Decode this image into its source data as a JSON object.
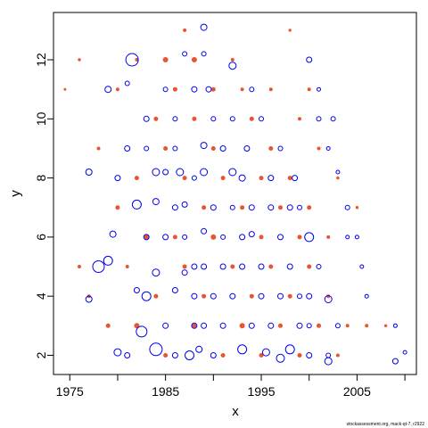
{
  "chart_data": {
    "type": "scatter",
    "xlabel": "x",
    "ylabel": "y",
    "xlim": [
      1973.3,
      2011.2
    ],
    "ylim": [
      1.35,
      13.6
    ],
    "xticks": [
      1975,
      1985,
      1995,
      2005
    ],
    "xtick_labels": [
      "1975",
      "1985",
      "1995",
      "2005"
    ],
    "xminor": [
      1980,
      1990,
      2000,
      2010
    ],
    "yticks": [
      2,
      4,
      6,
      8,
      10,
      12
    ],
    "ytick_labels": [
      "2",
      "4",
      "6",
      "8",
      "10",
      "12"
    ],
    "grid": false,
    "colors": {
      "negative": "#e8552e",
      "positive": "#0000ee"
    },
    "series": [
      {
        "values": [
          {
            "x": 1974.5,
            "y": 11.0,
            "r": 1
          },
          {
            "x": 1976.0,
            "y": 12.0,
            "r": 1.2
          },
          {
            "x": 1976.0,
            "y": 5.0,
            "r": 1.5
          },
          {
            "x": 1977.0,
            "y": 4.0,
            "r": 1.5
          },
          {
            "x": 1978.0,
            "y": 9.0,
            "r": 1.5
          },
          {
            "x": 1979.0,
            "y": 3.0,
            "r": 2
          },
          {
            "x": 1980.0,
            "y": 11.0,
            "r": 1.5
          },
          {
            "x": 1980.0,
            "y": 7.0,
            "r": 2
          },
          {
            "x": 1981.0,
            "y": 5.0,
            "r": 1.5
          },
          {
            "x": 1982.0,
            "y": 12.0,
            "r": 1.5
          },
          {
            "x": 1982.0,
            "y": 8.0,
            "r": 2
          },
          {
            "x": 1982.0,
            "y": 3.0,
            "r": 2.5
          },
          {
            "x": 1983.0,
            "y": 6.0,
            "r": 2
          },
          {
            "x": 1984.0,
            "y": 10.0,
            "r": 2
          },
          {
            "x": 1984.0,
            "y": 4.0,
            "r": 2
          },
          {
            "x": 1985.0,
            "y": 12.0,
            "r": 2.5
          },
          {
            "x": 1985.0,
            "y": 9.0,
            "r": 2
          },
          {
            "x": 1985.0,
            "y": 2.0,
            "r": 2
          },
          {
            "x": 1986.0,
            "y": 11.0,
            "r": 2
          },
          {
            "x": 1986.0,
            "y": 6.0,
            "r": 2
          },
          {
            "x": 1987.0,
            "y": 13.0,
            "r": 1.5
          },
          {
            "x": 1987.0,
            "y": 8.0,
            "r": 2
          },
          {
            "x": 1987.0,
            "y": 5.0,
            "r": 2
          },
          {
            "x": 1988.0,
            "y": 12.0,
            "r": 2.5
          },
          {
            "x": 1988.0,
            "y": 10.0,
            "r": 2
          },
          {
            "x": 1988.0,
            "y": 3.0,
            "r": 2
          },
          {
            "x": 1989.0,
            "y": 7.0,
            "r": 2
          },
          {
            "x": 1989.0,
            "y": 4.0,
            "r": 2
          },
          {
            "x": 1990.0,
            "y": 11.0,
            "r": 2
          },
          {
            "x": 1990.0,
            "y": 9.0,
            "r": 2
          },
          {
            "x": 1990.0,
            "y": 6.0,
            "r": 2.5
          },
          {
            "x": 1991.0,
            "y": 2.0,
            "r": 2
          },
          {
            "x": 1991.0,
            "y": 8.0,
            "r": 2
          },
          {
            "x": 1992.0,
            "y": 12.0,
            "r": 1.5
          },
          {
            "x": 1992.0,
            "y": 5.0,
            "r": 2
          },
          {
            "x": 1993.0,
            "y": 11.0,
            "r": 1.5
          },
          {
            "x": 1993.0,
            "y": 7.0,
            "r": 2
          },
          {
            "x": 1993.0,
            "y": 3.0,
            "r": 2.5
          },
          {
            "x": 1994.0,
            "y": 10.0,
            "r": 2
          },
          {
            "x": 1994.0,
            "y": 4.0,
            "r": 2
          },
          {
            "x": 1995.0,
            "y": 8.0,
            "r": 2
          },
          {
            "x": 1995.0,
            "y": 6.0,
            "r": 2
          },
          {
            "x": 1995.0,
            "y": 2.0,
            "r": 2
          },
          {
            "x": 1996.0,
            "y": 11.0,
            "r": 1.5
          },
          {
            "x": 1996.0,
            "y": 9.0,
            "r": 2
          },
          {
            "x": 1996.0,
            "y": 5.0,
            "r": 2
          },
          {
            "x": 1997.0,
            "y": 7.0,
            "r": 2
          },
          {
            "x": 1997.0,
            "y": 3.0,
            "r": 2
          },
          {
            "x": 1998.0,
            "y": 13.0,
            "r": 1.2
          },
          {
            "x": 1998.0,
            "y": 8.0,
            "r": 2
          },
          {
            "x": 1998.0,
            "y": 4.0,
            "r": 2
          },
          {
            "x": 1999.0,
            "y": 10.0,
            "r": 1.5
          },
          {
            "x": 1999.0,
            "y": 6.0,
            "r": 2
          },
          {
            "x": 1999.0,
            "y": 2.0,
            "r": 2
          },
          {
            "x": 2000.0,
            "y": 11.0,
            "r": 1.5
          },
          {
            "x": 2000.0,
            "y": 7.0,
            "r": 2
          },
          {
            "x": 2000.0,
            "y": 5.0,
            "r": 2
          },
          {
            "x": 2001.0,
            "y": 9.0,
            "r": 1.5
          },
          {
            "x": 2001.0,
            "y": 3.0,
            "r": 2
          },
          {
            "x": 2002.0,
            "y": 6.0,
            "r": 1.5
          },
          {
            "x": 2002.0,
            "y": 4.0,
            "r": 1.5
          },
          {
            "x": 2003.0,
            "y": 8.0,
            "r": 1.2
          },
          {
            "x": 2003.0,
            "y": 2.0,
            "r": 1.5
          },
          {
            "x": 2004.0,
            "y": 3.0,
            "r": 1.5
          },
          {
            "x": 2005.0,
            "y": 7.0,
            "r": 1.2
          },
          {
            "x": 2006.0,
            "y": 3.0,
            "r": 1.5
          },
          {
            "x": 2008.0,
            "y": 3.0,
            "r": 1.2
          }
        ]
      },
      {
        "values": [
          {
            "x": 1977.0,
            "y": 8.2,
            "r": 3.5
          },
          {
            "x": 1977.0,
            "y": 3.9,
            "r": 3.5
          },
          {
            "x": 1978.0,
            "y": 5.0,
            "r": 6.5
          },
          {
            "x": 1979.0,
            "y": 5.2,
            "r": 5
          },
          {
            "x": 1979.0,
            "y": 11.0,
            "r": 3.5
          },
          {
            "x": 1979.5,
            "y": 6.1,
            "r": 3.5
          },
          {
            "x": 1980.0,
            "y": 2.1,
            "r": 4
          },
          {
            "x": 1980.0,
            "y": 8.0,
            "r": 3
          },
          {
            "x": 1981.0,
            "y": 11.2,
            "r": 2.5
          },
          {
            "x": 1981.0,
            "y": 9.0,
            "r": 3
          },
          {
            "x": 1981.0,
            "y": 2.0,
            "r": 3
          },
          {
            "x": 1981.5,
            "y": 12.0,
            "r": 7
          },
          {
            "x": 1982.0,
            "y": 7.1,
            "r": 5
          },
          {
            "x": 1982.0,
            "y": 4.2,
            "r": 3
          },
          {
            "x": 1982.5,
            "y": 2.8,
            "r": 6
          },
          {
            "x": 1983.0,
            "y": 4.0,
            "r": 5
          },
          {
            "x": 1983.0,
            "y": 6.0,
            "r": 3
          },
          {
            "x": 1983.0,
            "y": 10.0,
            "r": 3
          },
          {
            "x": 1983.0,
            "y": 9.0,
            "r": 2.5
          },
          {
            "x": 1984.0,
            "y": 2.2,
            "r": 7
          },
          {
            "x": 1984.0,
            "y": 8.2,
            "r": 4
          },
          {
            "x": 1984.0,
            "y": 4.8,
            "r": 4
          },
          {
            "x": 1984.0,
            "y": 7.2,
            "r": 3.5
          },
          {
            "x": 1985.0,
            "y": 8.2,
            "r": 3
          },
          {
            "x": 1985.0,
            "y": 6.0,
            "r": 3
          },
          {
            "x": 1985.0,
            "y": 3.0,
            "r": 3
          },
          {
            "x": 1985.0,
            "y": 11.0,
            "r": 2.5
          },
          {
            "x": 1986.0,
            "y": 7.0,
            "r": 3
          },
          {
            "x": 1986.0,
            "y": 4.2,
            "r": 3
          },
          {
            "x": 1986.0,
            "y": 10.0,
            "r": 2.5
          },
          {
            "x": 1986.0,
            "y": 2.0,
            "r": 3
          },
          {
            "x": 1986.0,
            "y": 9.0,
            "r": 2.5
          },
          {
            "x": 1986.5,
            "y": 8.2,
            "r": 4
          },
          {
            "x": 1987.0,
            "y": 7.1,
            "r": 3
          },
          {
            "x": 1987.0,
            "y": 4.8,
            "r": 3
          },
          {
            "x": 1987.0,
            "y": 12.2,
            "r": 2.5
          },
          {
            "x": 1987.0,
            "y": 6.0,
            "r": 2.5
          },
          {
            "x": 1987.5,
            "y": 2.0,
            "r": 5
          },
          {
            "x": 1988.0,
            "y": 11.0,
            "r": 3
          },
          {
            "x": 1988.0,
            "y": 8.0,
            "r": 2.5
          },
          {
            "x": 1988.0,
            "y": 4.0,
            "r": 3
          },
          {
            "x": 1988.0,
            "y": 5.0,
            "r": 3
          },
          {
            "x": 1988.0,
            "y": 3.0,
            "r": 3
          },
          {
            "x": 1988.5,
            "y": 2.2,
            "r": 3.5
          },
          {
            "x": 1989.0,
            "y": 13.1,
            "r": 3.5
          },
          {
            "x": 1989.0,
            "y": 9.1,
            "r": 3.5
          },
          {
            "x": 1989.0,
            "y": 8.2,
            "r": 4
          },
          {
            "x": 1989.0,
            "y": 6.2,
            "r": 3
          },
          {
            "x": 1989.0,
            "y": 12.2,
            "r": 2.5
          },
          {
            "x": 1989.0,
            "y": 5.0,
            "r": 3
          },
          {
            "x": 1989.0,
            "y": 3.0,
            "r": 3
          },
          {
            "x": 1989.5,
            "y": 11.0,
            "r": 3
          },
          {
            "x": 1990.0,
            "y": 4.0,
            "r": 3
          },
          {
            "x": 1990.0,
            "y": 7.0,
            "r": 3
          },
          {
            "x": 1990.0,
            "y": 10.0,
            "r": 2.5
          },
          {
            "x": 1990.0,
            "y": 2.0,
            "r": 3
          },
          {
            "x": 1991.0,
            "y": 5.0,
            "r": 3
          },
          {
            "x": 1991.0,
            "y": 9.0,
            "r": 3
          },
          {
            "x": 1991.0,
            "y": 3.0,
            "r": 3
          },
          {
            "x": 1991.0,
            "y": 6.0,
            "r": 2.5
          },
          {
            "x": 1992.0,
            "y": 8.2,
            "r": 4
          },
          {
            "x": 1992.0,
            "y": 11.8,
            "r": 4
          },
          {
            "x": 1992.0,
            "y": 4.0,
            "r": 3
          },
          {
            "x": 1992.0,
            "y": 10.0,
            "r": 2.5
          },
          {
            "x": 1992.0,
            "y": 7.0,
            "r": 2.5
          },
          {
            "x": 1993.0,
            "y": 2.2,
            "r": 5
          },
          {
            "x": 1993.0,
            "y": 8.0,
            "r": 3.5
          },
          {
            "x": 1993.0,
            "y": 5.0,
            "r": 3
          },
          {
            "x": 1993.0,
            "y": 6.0,
            "r": 3
          },
          {
            "x": 1993.5,
            "y": 9.0,
            "r": 3
          },
          {
            "x": 1994.0,
            "y": 3.0,
            "r": 3
          },
          {
            "x": 1994.0,
            "y": 7.0,
            "r": 3
          },
          {
            "x": 1994.0,
            "y": 11.0,
            "r": 2.5
          },
          {
            "x": 1994.0,
            "y": 6.1,
            "r": 3
          },
          {
            "x": 1995.0,
            "y": 4.0,
            "r": 3
          },
          {
            "x": 1995.0,
            "y": 5.0,
            "r": 3
          },
          {
            "x": 1995.0,
            "y": 10.0,
            "r": 2.5
          },
          {
            "x": 1995.5,
            "y": 2.1,
            "r": 4
          },
          {
            "x": 1996.0,
            "y": 7.0,
            "r": 3
          },
          {
            "x": 1996.0,
            "y": 3.0,
            "r": 3
          },
          {
            "x": 1996.0,
            "y": 8.0,
            "r": 3
          },
          {
            "x": 1997.0,
            "y": 1.9,
            "r": 4.5
          },
          {
            "x": 1997.0,
            "y": 6.0,
            "r": 3
          },
          {
            "x": 1997.0,
            "y": 4.0,
            "r": 3
          },
          {
            "x": 1997.0,
            "y": 9.0,
            "r": 2.5
          },
          {
            "x": 1998.0,
            "y": 2.2,
            "r": 5
          },
          {
            "x": 1998.0,
            "y": 7.0,
            "r": 3
          },
          {
            "x": 1998.0,
            "y": 5.0,
            "r": 3
          },
          {
            "x": 1998.5,
            "y": 8.0,
            "r": 3
          },
          {
            "x": 1999.0,
            "y": 3.0,
            "r": 3
          },
          {
            "x": 1999.0,
            "y": 4.0,
            "r": 2.5
          },
          {
            "x": 1999.0,
            "y": 7.0,
            "r": 2.5
          },
          {
            "x": 2000.0,
            "y": 6.0,
            "r": 5
          },
          {
            "x": 2000.0,
            "y": 12.0,
            "r": 3
          },
          {
            "x": 2000.0,
            "y": 4.0,
            "r": 3
          },
          {
            "x": 2000.0,
            "y": 2.0,
            "r": 3
          },
          {
            "x": 2000.0,
            "y": 3.0,
            "r": 2.5
          },
          {
            "x": 2001.0,
            "y": 10.0,
            "r": 2.5
          },
          {
            "x": 2001.0,
            "y": 5.0,
            "r": 2.5
          },
          {
            "x": 2001.0,
            "y": 11.0,
            "r": 2
          },
          {
            "x": 2002.0,
            "y": 3.9,
            "r": 4
          },
          {
            "x": 2002.0,
            "y": 1.8,
            "r": 4
          },
          {
            "x": 2002.0,
            "y": 9.0,
            "r": 2
          },
          {
            "x": 2002.0,
            "y": 2.0,
            "r": 2.5
          },
          {
            "x": 2002.5,
            "y": 10.0,
            "r": 2.5
          },
          {
            "x": 2003.0,
            "y": 3.0,
            "r": 2.5
          },
          {
            "x": 2003.0,
            "y": 8.2,
            "r": 2
          },
          {
            "x": 2004.0,
            "y": 7.0,
            "r": 2.5
          },
          {
            "x": 2004.0,
            "y": 6.0,
            "r": 2
          },
          {
            "x": 2005.0,
            "y": 6.0,
            "r": 2
          },
          {
            "x": 2005.5,
            "y": 5.0,
            "r": 2
          },
          {
            "x": 2006.0,
            "y": 4.0,
            "r": 2
          },
          {
            "x": 2009.0,
            "y": 1.8,
            "r": 3
          },
          {
            "x": 2009.0,
            "y": 3.0,
            "r": 2
          },
          {
            "x": 2010.0,
            "y": 2.1,
            "r": 2
          }
        ]
      }
    ]
  },
  "footer": {
    "credit": "stockassessment.org, mack-qt-7, r2922"
  }
}
